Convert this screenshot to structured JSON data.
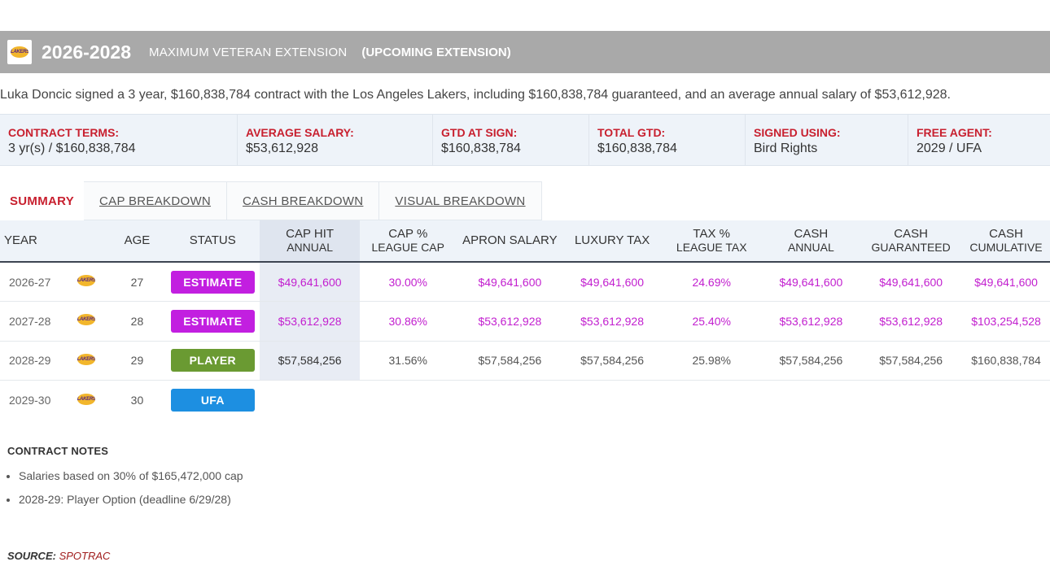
{
  "header": {
    "logo": "LAKERS",
    "years": "2026-2028",
    "type": "MAXIMUM VETERAN EXTENSION",
    "status": "(UPCOMING EXTENSION)",
    "bar_color": "#a9a9a9"
  },
  "summary": "Luka Doncic signed a 3 year, $160,838,784 contract with the Los Angeles Lakers, including $160,838,784 guaranteed, and an average annual salary of $53,612,928.",
  "terms": [
    {
      "label": "CONTRACT TERMS:",
      "value": "3 yr(s) / $160,838,784"
    },
    {
      "label": "AVERAGE SALARY:",
      "value": "$53,612,928"
    },
    {
      "label": "GTD AT SIGN:",
      "value": "$160,838,784"
    },
    {
      "label": "TOTAL GTD:",
      "value": "$160,838,784"
    },
    {
      "label": "SIGNED USING:",
      "value": "Bird Rights"
    },
    {
      "label": "FREE AGENT:",
      "value": "2029 / UFA"
    }
  ],
  "tabs": [
    "SUMMARY",
    "CAP BREAKDOWN",
    "CASH BREAKDOWN",
    "VISUAL BREAKDOWN"
  ],
  "table": {
    "headers": {
      "year": "YEAR",
      "age": "AGE",
      "status": "STATUS",
      "cap_hit_1": "CAP HIT",
      "cap_hit_2": "ANNUAL",
      "cap_pct_1": "CAP %",
      "cap_pct_2": "LEAGUE CAP",
      "apron": "APRON SALARY",
      "luxury": "LUXURY TAX",
      "tax_pct_1": "TAX %",
      "tax_pct_2": "LEAGUE TAX",
      "cash_annual_1": "CASH",
      "cash_annual_2": "ANNUAL",
      "cash_gtd_1": "CASH",
      "cash_gtd_2": "GUARANTEED",
      "cash_cum_1": "CASH",
      "cash_cum_2": "CUMULATIVE"
    },
    "rows": [
      {
        "year": "2026-27",
        "logo": "LAKERS",
        "age": "27",
        "status": "ESTIMATE",
        "cap_hit": "$49,641,600",
        "cap_pct": "30.00%",
        "apron": "$49,641,600",
        "luxury": "$49,641,600",
        "tax_pct": "24.69%",
        "cash_annual": "$49,641,600",
        "cash_gtd": "$49,641,600",
        "cash_cum": "$49,641,600"
      },
      {
        "year": "2027-28",
        "logo": "LAKERS",
        "age": "28",
        "status": "ESTIMATE",
        "cap_hit": "$53,612,928",
        "cap_pct": "30.86%",
        "apron": "$53,612,928",
        "luxury": "$53,612,928",
        "tax_pct": "25.40%",
        "cash_annual": "$53,612,928",
        "cash_gtd": "$53,612,928",
        "cash_cum": "$103,254,528"
      },
      {
        "year": "2028-29",
        "logo": "LAKERS",
        "age": "29",
        "status": "PLAYER",
        "cap_hit": "$57,584,256",
        "cap_pct": "31.56%",
        "apron": "$57,584,256",
        "luxury": "$57,584,256",
        "tax_pct": "25.98%",
        "cash_annual": "$57,584,256",
        "cash_gtd": "$57,584,256",
        "cash_cum": "$160,838,784"
      },
      {
        "year": "2029-30",
        "logo": "LAKERS",
        "age": "30",
        "status": "UFA"
      }
    ],
    "status_colors": {
      "ESTIMATE": "#c21fe0",
      "PLAYER": "#6a9a32",
      "UFA": "#1d8fe1"
    }
  },
  "notes": {
    "title": "CONTRACT NOTES",
    "items": [
      "Salaries based on 30% of $165,472,000 cap",
      "2028-29: Player Option (deadline 6/29/28)"
    ]
  },
  "source": {
    "label": "SOURCE:",
    "name": "SPOTRAC"
  }
}
